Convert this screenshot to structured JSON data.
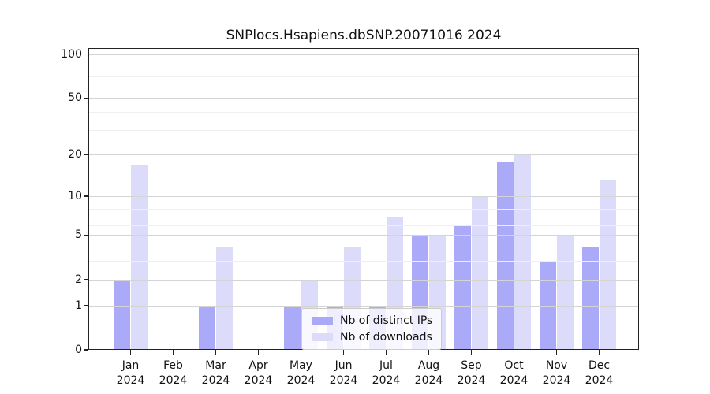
{
  "chart_data": {
    "type": "bar",
    "title": "SNPlocs.Hsapiens.dbSNP.20071016 2024",
    "categories": [
      "Jan",
      "Feb",
      "Mar",
      "Apr",
      "May",
      "Jun",
      "Jul",
      "Aug",
      "Sep",
      "Oct",
      "Nov",
      "Dec"
    ],
    "year": "2024",
    "series": [
      {
        "name": "Nb of distinct IPs",
        "color": "#aaaaf9",
        "values": [
          2,
          0,
          1,
          0,
          1,
          1,
          1,
          5,
          6,
          18,
          3,
          4
        ]
      },
      {
        "name": "Nb of downloads",
        "color": "#dcdcfa",
        "values": [
          17,
          0,
          4,
          0,
          2,
          4,
          7,
          5,
          10,
          20,
          5,
          13
        ]
      }
    ],
    "y_scale": "log1p",
    "y_ticks": [
      0,
      1,
      2,
      5,
      10,
      20,
      50,
      100
    ],
    "y_minor_ticks": [
      3,
      4,
      6,
      7,
      8,
      9,
      30,
      40,
      60,
      70,
      80,
      90
    ],
    "ylim": [
      0,
      110
    ],
    "xlabel": "",
    "ylabel": "",
    "grid": "on",
    "grid_above_bars": true,
    "legend_position": "lower center",
    "colors": {
      "major_grid": "#d4d4d4",
      "minor_grid": "#efefef",
      "axis": "#222222",
      "background": "#ffffff"
    }
  }
}
